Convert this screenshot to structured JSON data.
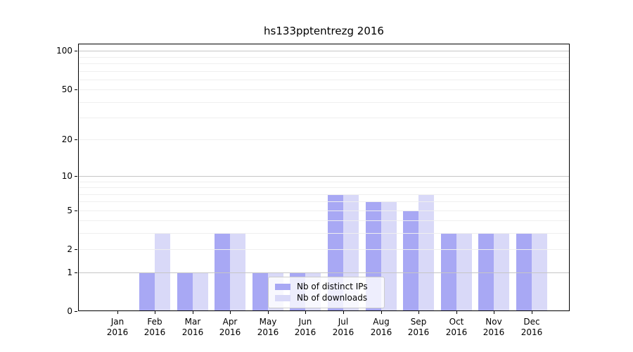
{
  "figure": {
    "background": "#ffffff"
  },
  "chart_data": {
    "type": "bar",
    "title": "hs133pptentrezg 2016",
    "categories": [
      "Jan",
      "Feb",
      "Mar",
      "Apr",
      "May",
      "Jun",
      "Jul",
      "Aug",
      "Sep",
      "Oct",
      "Nov",
      "Dec"
    ],
    "x_year_label": "2016",
    "series": [
      {
        "name": "Nb of distinct IPs",
        "color": "#a8a8f4",
        "values": [
          0,
          1,
          1,
          3,
          1,
          1,
          7,
          6,
          5,
          3,
          3,
          3
        ]
      },
      {
        "name": "Nb of downloads",
        "color": "#d9d9f8",
        "values": [
          0,
          3,
          1,
          3,
          1,
          1,
          7,
          6,
          7,
          3,
          3,
          3
        ]
      }
    ],
    "y_axis": {
      "scale": "log1p",
      "tick_values": [
        0,
        1,
        2,
        5,
        10,
        20,
        50,
        100
      ],
      "tick_labels": [
        "0",
        "1",
        "2",
        "5",
        "10",
        "20",
        "50",
        "100"
      ],
      "minor_gridlines": [
        3,
        4,
        6,
        7,
        8,
        9,
        30,
        40,
        60,
        70,
        80,
        90
      ],
      "emphasized_gridlines": [
        1,
        10,
        100
      ],
      "ylim": [
        0,
        114
      ]
    },
    "grid": true,
    "legend": {
      "position": "lower center",
      "entries": [
        "Nb of distinct IPs",
        "Nb of downloads"
      ]
    }
  },
  "colors": {
    "grid_major": "#c6c6c6",
    "grid_minor": "#efefef",
    "spine": "#000000",
    "text": "#000000",
    "legend_border": "#cccccc",
    "legend_background": "rgba(255,255,255,0.8)"
  }
}
